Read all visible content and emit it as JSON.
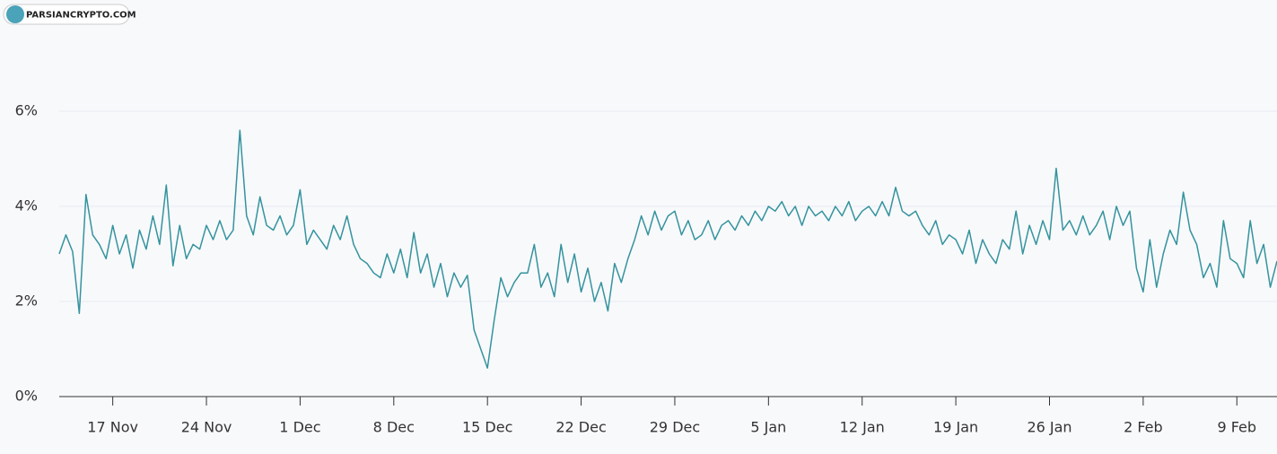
{
  "chart_data": {
    "type": "line",
    "watermark": "PARSIANCRYPTO.COM",
    "x": [
      -4,
      -3.5,
      -3,
      -2.5,
      -2,
      -1.5,
      -1,
      -0.5,
      0,
      0.5,
      1,
      1.5,
      2,
      2.5,
      3,
      3.5,
      4,
      4.5,
      5,
      5.5,
      6,
      6.5,
      7,
      7.5,
      8,
      8.5,
      9,
      9.5,
      10,
      10.5,
      11,
      11.5,
      12,
      12.5,
      13,
      13.5,
      14,
      14.5,
      15,
      15.5,
      16,
      16.5,
      17,
      17.5,
      18,
      18.5,
      19,
      19.5,
      20,
      20.5,
      21,
      21.5,
      22,
      22.5,
      23,
      23.5,
      24,
      24.5,
      25,
      25.5,
      26,
      26.5,
      27,
      27.5,
      28,
      28.5,
      29,
      29.5,
      30,
      30.5,
      31,
      31.5,
      32,
      32.5,
      33,
      33.5,
      34,
      34.5,
      35,
      35.5,
      36,
      36.5,
      37,
      37.5,
      38,
      38.5,
      39,
      39.5,
      40,
      40.5,
      41,
      41.5,
      42,
      42.5,
      43,
      43.5,
      44,
      44.5,
      45,
      45.5,
      46,
      46.5,
      47,
      47.5,
      48,
      48.5,
      49,
      49.5,
      50,
      50.5,
      51,
      51.5,
      52,
      52.5,
      53,
      53.5,
      54,
      54.5,
      55,
      55.5,
      56,
      56.5,
      57,
      57.5,
      58,
      58.5,
      59,
      59.5,
      60,
      60.5,
      61,
      61.5,
      62,
      62.5,
      63,
      63.5,
      64,
      64.5,
      65,
      65.5,
      66,
      66.5,
      67,
      67.5,
      68,
      68.5,
      69,
      69.5,
      70,
      70.5,
      71,
      71.5,
      72,
      72.5,
      73,
      73.5,
      74,
      74.5,
      75,
      75.5,
      76,
      76.5,
      77,
      77.5,
      78,
      78.5,
      79,
      79.5,
      80,
      80.5,
      81,
      81.5,
      82,
      82.5,
      83,
      83.5,
      84,
      84.5,
      85,
      85.5,
      86,
      86.5,
      87
    ],
    "series": [
      {
        "color": "#34939e",
        "values": [
          3.0,
          3.4,
          3.05,
          1.75,
          4.25,
          3.4,
          3.2,
          2.9,
          3.6,
          3.0,
          3.4,
          2.7,
          3.5,
          3.1,
          3.8,
          3.2,
          4.45,
          2.75,
          3.6,
          2.9,
          3.2,
          3.1,
          3.6,
          3.3,
          3.7,
          3.3,
          3.5,
          5.6,
          3.8,
          3.4,
          4.2,
          3.6,
          3.5,
          3.8,
          3.4,
          3.6,
          4.35,
          3.2,
          3.5,
          3.3,
          3.1,
          3.6,
          3.3,
          3.8,
          3.2,
          2.9,
          2.8,
          2.6,
          2.5,
          3.0,
          2.6,
          3.1,
          2.5,
          3.45,
          2.6,
          3.0,
          2.3,
          2.8,
          2.1,
          2.6,
          2.3,
          2.55,
          1.4,
          1.0,
          0.6,
          1.6,
          2.5,
          2.1,
          2.4,
          2.6,
          2.6,
          3.2,
          2.3,
          2.6,
          2.1,
          3.2,
          2.4,
          3.0,
          2.2,
          2.7,
          2.0,
          2.4,
          1.8,
          2.8,
          2.4,
          2.9,
          3.3,
          3.8,
          3.4,
          3.9,
          3.5,
          3.8,
          3.9,
          3.4,
          3.7,
          3.3,
          3.4,
          3.7,
          3.3,
          3.6,
          3.7,
          3.5,
          3.8,
          3.6,
          3.9,
          3.7,
          4.0,
          3.9,
          4.1,
          3.8,
          4.0,
          3.6,
          4.0,
          3.8,
          3.9,
          3.7,
          4.0,
          3.8,
          4.1,
          3.7,
          3.9,
          4.0,
          3.8,
          4.1,
          3.8,
          4.4,
          3.9,
          3.8,
          3.9,
          3.6,
          3.4,
          3.7,
          3.2,
          3.4,
          3.3,
          3.0,
          3.5,
          2.8,
          3.3,
          3.0,
          2.8,
          3.3,
          3.1,
          3.9,
          3.0,
          3.6,
          3.2,
          3.7,
          3.3,
          4.8,
          3.5,
          3.7,
          3.4,
          3.8,
          3.4,
          3.6,
          3.9,
          3.3,
          4.0,
          3.6,
          3.9,
          2.7,
          2.2,
          3.3,
          2.3,
          3.0,
          3.5,
          3.2,
          4.3,
          3.5,
          3.2,
          2.5,
          2.8,
          2.3,
          3.7,
          2.9,
          2.8,
          2.5,
          3.7,
          2.8,
          3.2,
          2.3,
          2.85
        ]
      }
    ],
    "xlim": [
      -4,
      87
    ],
    "xticks": [
      {
        "value": 0,
        "label": "17 Nov"
      },
      {
        "value": 7,
        "label": "24 Nov"
      },
      {
        "value": 14,
        "label": "1 Dec"
      },
      {
        "value": 21,
        "label": "8 Dec"
      },
      {
        "value": 28,
        "label": "15 Dec"
      },
      {
        "value": 35,
        "label": "22 Dec"
      },
      {
        "value": 42,
        "label": "29 Dec"
      },
      {
        "value": 49,
        "label": "5 Jan"
      },
      {
        "value": 56,
        "label": "12 Jan"
      },
      {
        "value": 63,
        "label": "19 Jan"
      },
      {
        "value": 70,
        "label": "26 Jan"
      },
      {
        "value": 77,
        "label": "2 Feb"
      },
      {
        "value": 84,
        "label": "9 Feb"
      }
    ],
    "ylim": [
      0,
      6
    ],
    "yticks": [
      {
        "value": 0,
        "label": "0%"
      },
      {
        "value": 2,
        "label": "2%"
      },
      {
        "value": 4,
        "label": "4%"
      },
      {
        "value": 6,
        "label": "6%"
      }
    ],
    "grid": true
  }
}
